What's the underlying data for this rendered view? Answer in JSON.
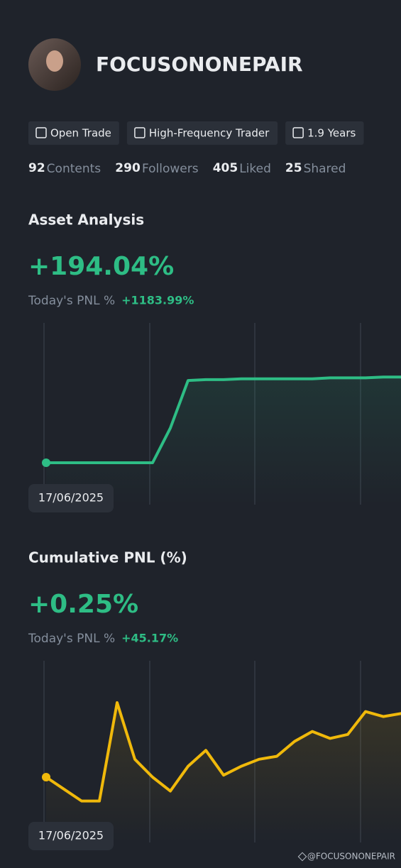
{
  "profile": {
    "name": "FOCUSONONEPAIR",
    "badges": [
      "Open Trade",
      "High-Frequency Trader",
      "1.9 Years"
    ],
    "stats": [
      {
        "value": 92,
        "label": "Contents"
      },
      {
        "value": 290,
        "label": "Followers"
      },
      {
        "value": 405,
        "label": "Liked"
      },
      {
        "value": 25,
        "label": "Shared"
      }
    ]
  },
  "sections": [
    {
      "title": "Asset Analysis",
      "headline": "+194.04%",
      "today_label": "Today's PNL %",
      "today_value": "+1183.99%",
      "chart": {
        "type": "line",
        "color": "#2ebd85",
        "ylim": [
          0,
          100
        ],
        "values": [
          0,
          0,
          0,
          0,
          0,
          0,
          0,
          40,
          95,
          96,
          96,
          97,
          97,
          97,
          97,
          97,
          98,
          98,
          98,
          99,
          99
        ],
        "date": "17/06/2025"
      }
    },
    {
      "title": "Cumulative PNL (%)",
      "headline": "+0.25%",
      "today_label": "Today's PNL %",
      "today_value": "+45.17%",
      "chart": {
        "type": "line",
        "color": "#f0b90b",
        "ylim": [
          0,
          100
        ],
        "values": [
          25,
          13,
          1,
          1,
          100,
          43,
          25,
          11,
          36,
          52,
          27,
          36,
          43,
          46,
          61,
          71,
          64,
          68,
          91,
          86,
          89
        ],
        "date": "17/06/2025"
      }
    }
  ],
  "watermark": "@FOCUSONONEPAIR"
}
